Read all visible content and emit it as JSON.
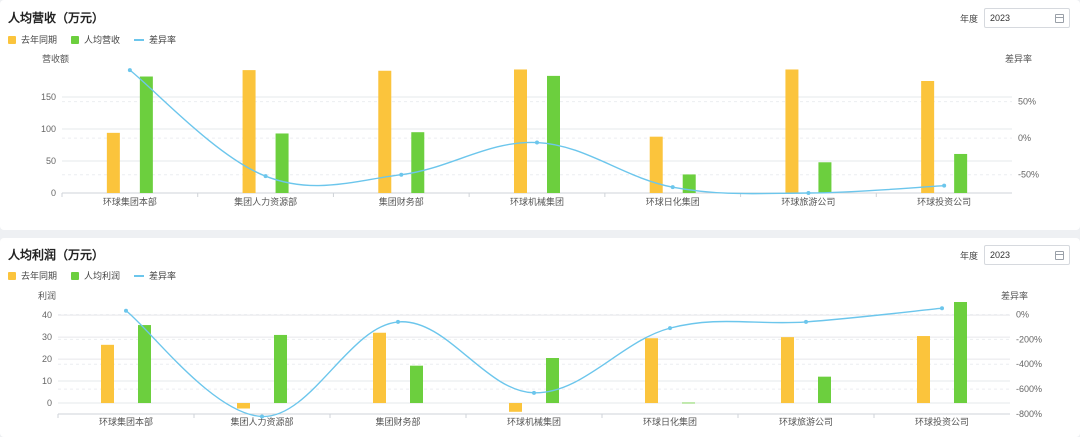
{
  "colors": {
    "last_year": "#fbc43c",
    "current": "#6ccf3e",
    "diff": "#6cc6ec",
    "grid": "#e6e8eb"
  },
  "icons": {
    "calendar": "calendar-icon"
  },
  "panels": [
    {
      "title": "人均营收（万元）",
      "year_label": "年度",
      "year_value": "2023",
      "legend": {
        "last_year": "去年同期",
        "current": "人均营收",
        "diff": "差异率"
      }
    },
    {
      "title": "人均利润（万元）",
      "year_label": "年度",
      "year_value": "2023",
      "legend": {
        "last_year": "去年同期",
        "current": "人均利润",
        "diff": "差异率"
      }
    }
  ],
  "chart_data": [
    {
      "type": "bar",
      "title": "人均营收（万元）",
      "ylabel": "营收额",
      "y2label": "差异率",
      "categories": [
        "环球集团本部",
        "集团人力资源部",
        "集团财务部",
        "环球机械集团",
        "环球日化集团",
        "环球旅游公司",
        "环球投资公司"
      ],
      "ylim": [
        0,
        200
      ],
      "yticks": [
        0,
        50,
        100,
        150
      ],
      "y2lim": [
        -75,
        100
      ],
      "y2ticks": [
        -50,
        0,
        50
      ],
      "y2tick_labels": [
        "-50%",
        "0%",
        "50%"
      ],
      "grid": true,
      "legend_position": "top-left",
      "series": [
        {
          "name": "去年同期",
          "type": "bar",
          "values": [
            94,
            192,
            191,
            193,
            88,
            193,
            175
          ]
        },
        {
          "name": "人均营收",
          "type": "bar",
          "values": [
            182,
            93,
            95,
            183,
            29,
            48,
            61
          ]
        },
        {
          "name": "差异率",
          "type": "line",
          "axis": "right",
          "values": [
            93,
            -52,
            -50,
            -6,
            -67,
            -75,
            -65
          ]
        }
      ]
    },
    {
      "type": "bar",
      "title": "人均利润（万元）",
      "ylabel": "利润",
      "y2label": "差异率",
      "categories": [
        "环球集团本部",
        "集团人力资源部",
        "集团财务部",
        "环球机械集团",
        "环球日化集团",
        "环球旅游公司",
        "环球投资公司"
      ],
      "ylim": [
        -5,
        46
      ],
      "yticks": [
        0,
        10,
        20,
        30,
        40
      ],
      "y2lim": [
        -800,
        100
      ],
      "y2ticks": [
        -800,
        -600,
        -400,
        -200,
        0
      ],
      "y2tick_labels": [
        "-800%",
        "-600%",
        "-400%",
        "-200%",
        "0%"
      ],
      "grid": true,
      "legend_position": "top-left",
      "series": [
        {
          "name": "去年同期",
          "type": "bar",
          "values": [
            26.5,
            -2.5,
            32,
            -4,
            29.5,
            30,
            30.5
          ]
        },
        {
          "name": "人均利润",
          "type": "bar",
          "values": [
            35.5,
            31,
            17,
            20.5,
            0.2,
            12,
            46
          ]
        },
        {
          "name": "差异率",
          "type": "line",
          "axis": "right",
          "values": [
            30,
            -820,
            -60,
            -630,
            -110,
            -60,
            50
          ]
        }
      ]
    }
  ]
}
